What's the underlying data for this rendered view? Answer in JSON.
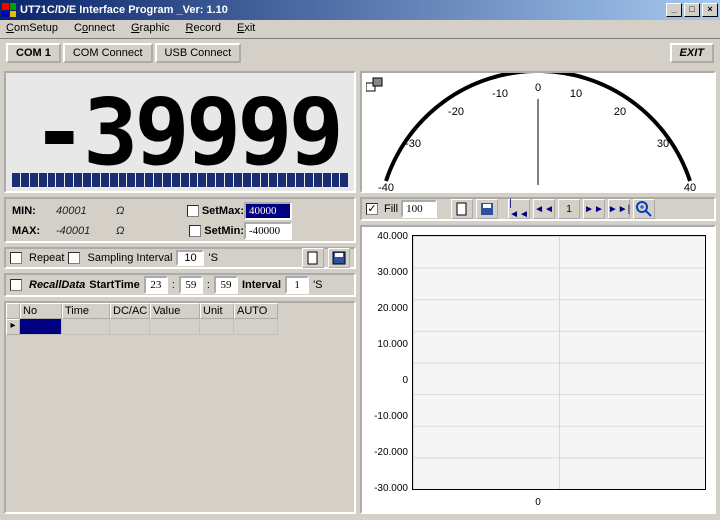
{
  "window": {
    "title": "UT71C/D/E Interface Program _Ver: 1.10",
    "icon_colors": [
      "#ff0000",
      "#00a000",
      "#0000c0",
      "#e0c000"
    ]
  },
  "menu": {
    "items": [
      "ComSetup",
      "Connect",
      "Graphic",
      "Record",
      "Exit"
    ]
  },
  "toolbar": {
    "com_label": "COM 1",
    "com_connect": "COM Connect",
    "usb_connect": "USB Connect",
    "exit": "EXIT"
  },
  "lcd": {
    "value": "-39999",
    "bar_segments": 38,
    "bar_color": "#1b2c73",
    "bg": "#e8e8e8"
  },
  "minmax": {
    "min_label": "MIN:",
    "min_value": "40001",
    "min_unit": "Ω",
    "max_label": "MAX:",
    "max_value": "-40001",
    "max_unit": "Ω",
    "setmax_label": "SetMax:",
    "setmax_value": "40000",
    "setmin_label": "SetMin:",
    "setmin_value": "-40000"
  },
  "repeat": {
    "repeat_label": "Repeat",
    "sampling_label": "Sampling Interval",
    "sampling_value": "10",
    "sampling_unit": "'S"
  },
  "recall": {
    "label": "RecallData",
    "start_label": "StartTime",
    "h": "23",
    "m": "59",
    "s": "59",
    "interval_label": "Interval",
    "interval_value": "1",
    "interval_unit": "'S"
  },
  "gridcols": [
    "No",
    "Time",
    "DC/AC",
    "Value",
    "Unit",
    "AUTO"
  ],
  "gauge": {
    "min": -40,
    "max": 40,
    "ticks": [
      -40,
      -30,
      -20,
      -10,
      0,
      10,
      20,
      30,
      40
    ],
    "arc_color": "#000000",
    "bg": "#ffffff"
  },
  "chartbar": {
    "fill_label": "Fill",
    "fill_value": "100",
    "page_value": "1"
  },
  "chart": {
    "y_ticks": [
      "40.000",
      "30.000",
      "20.000",
      "10.000",
      "0",
      "-10.000",
      "-20.000",
      "-30.000"
    ],
    "x_center": "0",
    "bg": "#f5f5f5",
    "grid_color": "#d8d8d8"
  }
}
